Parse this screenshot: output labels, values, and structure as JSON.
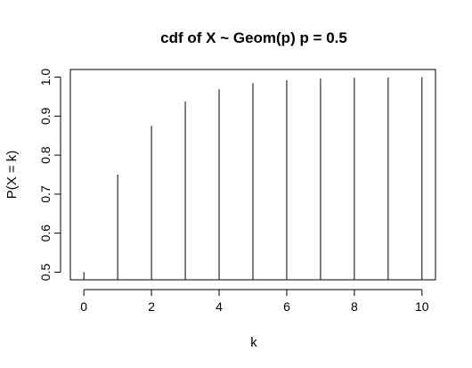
{
  "chart_data": {
    "type": "bar",
    "title": "cdf of X ~ Geom(p) p = 0.5",
    "xlabel": "k",
    "ylabel": "P(X = k)",
    "x": [
      0,
      1,
      2,
      3,
      4,
      5,
      6,
      7,
      8,
      9,
      10
    ],
    "values": [
      0.5,
      0.75,
      0.875,
      0.9375,
      0.96875,
      0.984375,
      0.9921875,
      0.99609375,
      0.998046875,
      0.9990234375,
      0.99951171875
    ],
    "xlim": [
      -0.4,
      10.4
    ],
    "ylim": [
      0.4805,
      1.0195
    ],
    "x_ticks": [
      "0",
      "2",
      "4",
      "6",
      "8",
      "10"
    ],
    "y_ticks": [
      "0.5",
      "0.6",
      "0.7",
      "0.8",
      "0.9",
      "1.0"
    ],
    "grid": false,
    "legend": "none",
    "colors": {
      "line": "#000000",
      "background": "#ffffff"
    }
  }
}
